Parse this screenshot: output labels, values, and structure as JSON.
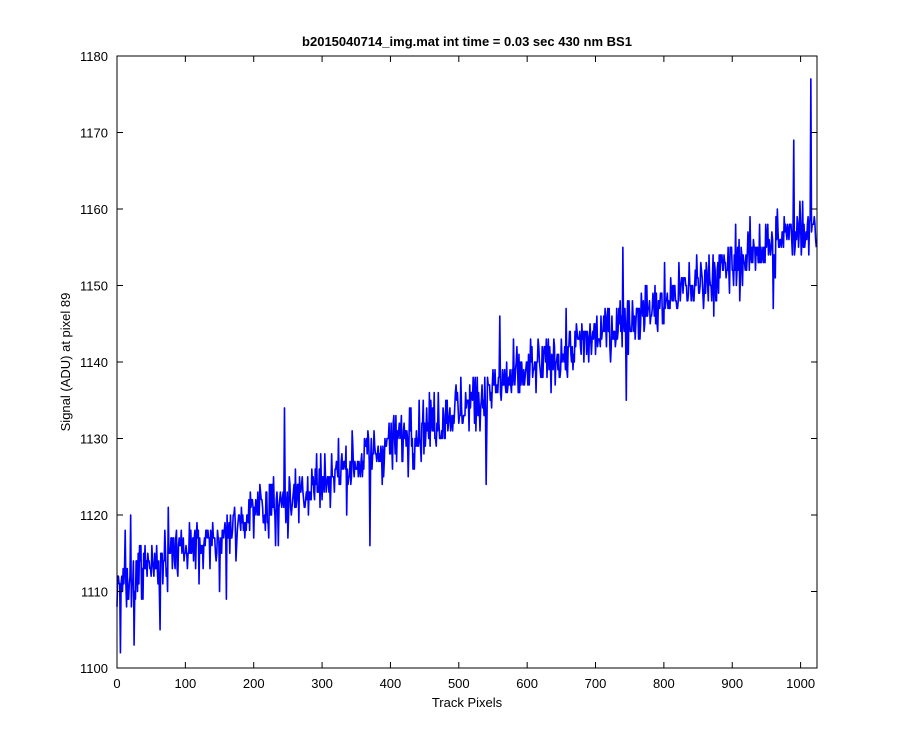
{
  "chart_data": {
    "type": "line",
    "title": "b2015040714_img.mat int time = 0.03 sec  430 nm BS1",
    "xlabel": "Track Pixels",
    "ylabel": "Signal (ADU) at pixel 89",
    "xlim": [
      0,
      1024
    ],
    "ylim": [
      1100,
      1180
    ],
    "xticks": [
      0,
      100,
      200,
      300,
      400,
      500,
      600,
      700,
      800,
      900,
      1000
    ],
    "yticks": [
      1100,
      1110,
      1120,
      1130,
      1140,
      1150,
      1160,
      1170,
      1180
    ],
    "grid": false,
    "line_color": "#0000ff",
    "series": [
      {
        "points_count": 1024,
        "trend_start": 1110.5,
        "trend_end": 1158.5,
        "noise_amplitude": 6,
        "sampled_points": [
          [
            0,
            1108
          ],
          [
            5,
            1102
          ],
          [
            12,
            1118
          ],
          [
            20,
            1120
          ],
          [
            25,
            1103
          ],
          [
            50,
            1112
          ],
          [
            63,
            1105
          ],
          [
            75,
            1121
          ],
          [
            100,
            1115
          ],
          [
            150,
            1110
          ],
          [
            160,
            1109
          ],
          [
            200,
            1117
          ],
          [
            245,
            1134
          ],
          [
            250,
            1117
          ],
          [
            300,
            1122
          ],
          [
            340,
            1125
          ],
          [
            370,
            1116
          ],
          [
            400,
            1128
          ],
          [
            430,
            1134
          ],
          [
            500,
            1132
          ],
          [
            540,
            1124
          ],
          [
            560,
            1146
          ],
          [
            600,
            1140
          ],
          [
            650,
            1143
          ],
          [
            700,
            1141
          ],
          [
            740,
            1155
          ],
          [
            745,
            1135
          ],
          [
            800,
            1145
          ],
          [
            880,
            1149
          ],
          [
            900,
            1152
          ],
          [
            940,
            1158
          ],
          [
            960,
            1147
          ],
          [
            990,
            1169
          ],
          [
            1000,
            1158
          ],
          [
            1015,
            1177
          ],
          [
            1023,
            1155
          ]
        ]
      }
    ]
  }
}
